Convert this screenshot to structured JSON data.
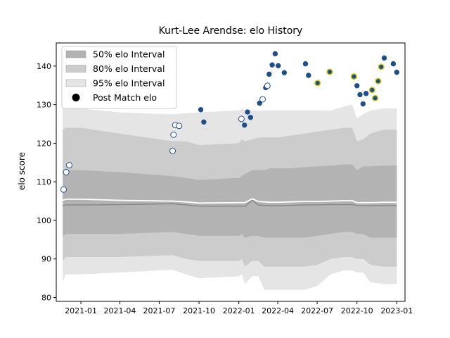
{
  "chart_data": {
    "type": "line",
    "title": "Kurt-Lee Arendse: elo History",
    "xlabel": "",
    "ylabel": "elo score",
    "xlim": [
      "2020-11-05",
      "2023-01-20"
    ],
    "ylim": [
      79,
      146
    ],
    "x_ticks": [
      "2021-01",
      "2021-04",
      "2021-07",
      "2021-10",
      "2022-01",
      "2022-04",
      "2022-07",
      "2022-10",
      "2023-01"
    ],
    "y_ticks": [
      80,
      90,
      100,
      110,
      120,
      130,
      140
    ],
    "legend_position": "top-left",
    "colors": {
      "band_50": "#b3b3b3",
      "band_80": "#cccccc",
      "band_95": "#e5e5e5",
      "median_line": "#888888",
      "mean_line": "#ffffff",
      "point_fill_dark": "#1f4e8c",
      "point_fill_open": "#ffffff",
      "point_edge": "#1f4e8c",
      "point_edge_highlight": "#d4c800"
    },
    "legend": [
      {
        "label": "50% elo Interval",
        "swatch": "band_50"
      },
      {
        "label": "80% elo Interval",
        "swatch": "band_80"
      },
      {
        "label": "95% elo Interval",
        "swatch": "band_95"
      },
      {
        "label": "Post Match elo",
        "swatch": "marker"
      }
    ],
    "bands": {
      "x": [
        "2020-11-20",
        "2020-11-27",
        "2021-01-01",
        "2021-04-01",
        "2021-08-01",
        "2021-09-01",
        "2021-10-01",
        "2022-01-01",
        "2022-01-08",
        "2022-01-15",
        "2022-02-01",
        "2022-02-15",
        "2022-03-01",
        "2022-03-15",
        "2022-04-01",
        "2022-05-01",
        "2022-06-01",
        "2022-07-01",
        "2022-08-01",
        "2022-09-01",
        "2022-09-20",
        "2022-10-01",
        "2022-10-15",
        "2022-11-01",
        "2022-12-01",
        "2023-01-01"
      ],
      "p95_low": [
        84.0,
        86.0,
        86.0,
        86.5,
        87.2,
        86.0,
        85.0,
        85.5,
        86.0,
        83.5,
        85.5,
        85.5,
        82.0,
        82.0,
        82.0,
        82.0,
        82.0,
        83.0,
        86.0,
        87.0,
        87.0,
        86.5,
        86.5,
        84.0,
        83.5,
        83.5
      ],
      "p80_low": [
        89.5,
        90.5,
        90.5,
        90.5,
        91.0,
        90.0,
        89.5,
        89.5,
        90.0,
        88.0,
        89.5,
        89.5,
        88.0,
        88.0,
        88.0,
        88.0,
        88.0,
        88.5,
        90.0,
        90.5,
        90.5,
        90.0,
        90.0,
        88.5,
        88.0,
        88.0
      ],
      "p50_low": [
        96.0,
        96.5,
        96.5,
        96.5,
        97.0,
        96.5,
        96.0,
        96.0,
        96.5,
        95.5,
        96.0,
        96.0,
        95.5,
        95.5,
        95.5,
        95.5,
        95.5,
        96.0,
        96.5,
        97.0,
        97.0,
        96.5,
        96.5,
        95.5,
        95.5,
        95.5
      ],
      "median": [
        103.8,
        104.0,
        104.0,
        104.1,
        104.3,
        104.0,
        103.7,
        103.7,
        103.7,
        103.7,
        105.2,
        104.0,
        103.9,
        103.8,
        103.8,
        103.9,
        104.0,
        104.0,
        104.1,
        104.1,
        104.1,
        103.8,
        103.8,
        103.8,
        103.8,
        103.8
      ],
      "mean": [
        105.2,
        105.5,
        105.5,
        105.2,
        105.0,
        104.8,
        104.5,
        104.6,
        104.6,
        104.6,
        105.6,
        104.9,
        104.8,
        104.7,
        104.7,
        104.8,
        104.9,
        104.9,
        105.0,
        105.1,
        105.1,
        104.6,
        104.6,
        104.6,
        104.7,
        104.7
      ],
      "p50_high": [
        112.5,
        113.0,
        113.0,
        112.5,
        111.5,
        111.0,
        110.5,
        111.0,
        111.5,
        112.0,
        113.0,
        113.0,
        113.0,
        113.5,
        113.5,
        113.5,
        113.8,
        114.0,
        114.2,
        114.5,
        114.5,
        113.0,
        114.0,
        114.0,
        114.2,
        114.2
      ],
      "p80_high": [
        123.5,
        124.0,
        124.0,
        122.5,
        120.5,
        120.5,
        119.5,
        120.0,
        121.0,
        120.5,
        121.0,
        121.5,
        121.5,
        121.5,
        121.5,
        122.0,
        122.5,
        123.0,
        123.5,
        124.0,
        124.0,
        120.5,
        121.0,
        122.5,
        123.5,
        123.5
      ],
      "p95_high": [
        129.0,
        129.0,
        129.0,
        128.0,
        127.5,
        127.8,
        128.0,
        128.5,
        129.0,
        128.5,
        128.5,
        128.5,
        128.5,
        128.5,
        128.5,
        128.5,
        128.5,
        128.5,
        128.5,
        129.5,
        130.0,
        126.5,
        127.5,
        128.5,
        129.0,
        129.0
      ]
    },
    "points": [
      {
        "x": "2020-11-22",
        "y": 108.0,
        "style": "open"
      },
      {
        "x": "2020-11-28",
        "y": 112.5,
        "style": "open"
      },
      {
        "x": "2020-12-05",
        "y": 114.3,
        "style": "open"
      },
      {
        "x": "2021-08-01",
        "y": 118.0,
        "style": "open"
      },
      {
        "x": "2021-08-03",
        "y": 122.2,
        "style": "open"
      },
      {
        "x": "2021-08-07",
        "y": 124.7,
        "style": "open"
      },
      {
        "x": "2021-08-16",
        "y": 124.5,
        "style": "open"
      },
      {
        "x": "2021-10-05",
        "y": 128.7,
        "style": "dark"
      },
      {
        "x": "2021-10-12",
        "y": 125.5,
        "style": "dark"
      },
      {
        "x": "2022-01-07",
        "y": 126.3,
        "style": "open"
      },
      {
        "x": "2022-01-14",
        "y": 124.7,
        "style": "dark"
      },
      {
        "x": "2022-01-21",
        "y": 128.1,
        "style": "dark"
      },
      {
        "x": "2022-01-28",
        "y": 126.7,
        "style": "dark"
      },
      {
        "x": "2022-02-18",
        "y": 130.4,
        "style": "dark"
      },
      {
        "x": "2022-02-25",
        "y": 131.4,
        "style": "open"
      },
      {
        "x": "2022-03-04",
        "y": 134.4,
        "style": "dark"
      },
      {
        "x": "2022-03-08",
        "y": 134.9,
        "style": "open"
      },
      {
        "x": "2022-03-12",
        "y": 137.9,
        "style": "dark"
      },
      {
        "x": "2022-03-19",
        "y": 140.3,
        "style": "dark"
      },
      {
        "x": "2022-03-26",
        "y": 143.2,
        "style": "dark"
      },
      {
        "x": "2022-04-02",
        "y": 140.1,
        "style": "dark"
      },
      {
        "x": "2022-04-16",
        "y": 138.3,
        "style": "dark"
      },
      {
        "x": "2022-06-04",
        "y": 140.6,
        "style": "dark"
      },
      {
        "x": "2022-06-11",
        "y": 137.6,
        "style": "dark"
      },
      {
        "x": "2022-07-02",
        "y": 135.6,
        "style": "highlight"
      },
      {
        "x": "2022-07-30",
        "y": 138.5,
        "style": "highlight"
      },
      {
        "x": "2022-09-24",
        "y": 137.3,
        "style": "highlight"
      },
      {
        "x": "2022-10-01",
        "y": 134.9,
        "style": "dark"
      },
      {
        "x": "2022-10-08",
        "y": 132.6,
        "style": "dark"
      },
      {
        "x": "2022-10-15",
        "y": 130.2,
        "style": "dark"
      },
      {
        "x": "2022-10-22",
        "y": 132.9,
        "style": "dark"
      },
      {
        "x": "2022-11-05",
        "y": 133.8,
        "style": "highlight"
      },
      {
        "x": "2022-11-12",
        "y": 131.7,
        "style": "highlight"
      },
      {
        "x": "2022-11-19",
        "y": 136.1,
        "style": "highlight"
      },
      {
        "x": "2022-11-26",
        "y": 139.8,
        "style": "highlight"
      },
      {
        "x": "2022-12-03",
        "y": 142.1,
        "style": "dark"
      },
      {
        "x": "2022-12-24",
        "y": 140.6,
        "style": "dark"
      },
      {
        "x": "2023-01-01",
        "y": 138.4,
        "style": "dark"
      }
    ]
  }
}
